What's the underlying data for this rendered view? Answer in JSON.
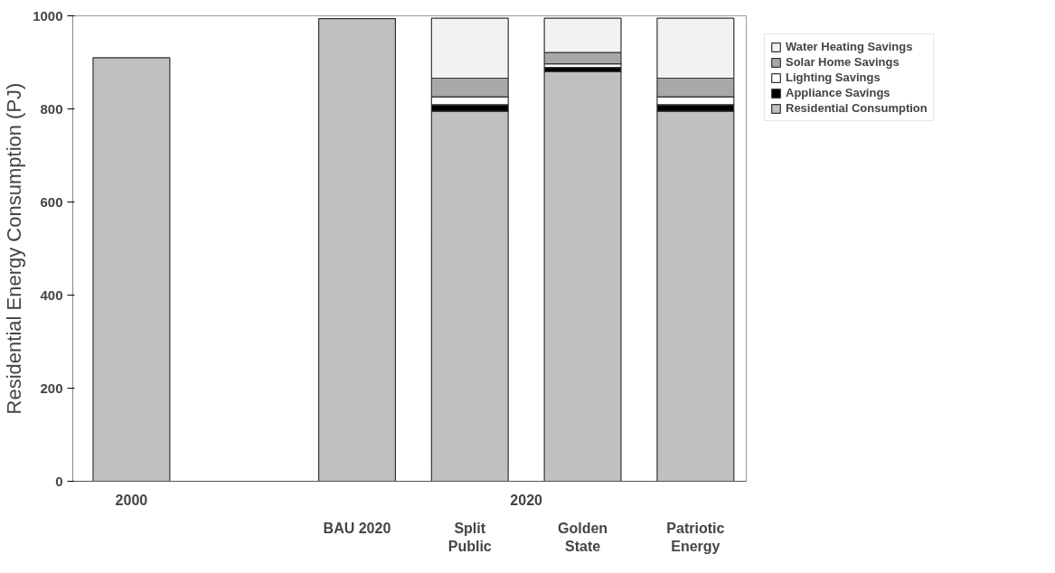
{
  "chart_data": {
    "type": "bar",
    "stacked": true,
    "ylabel": "Residential Energy Consumption (PJ)",
    "categories": [
      "2000",
      null,
      "BAU 2020",
      "Split\nPublic",
      "Golden\nState",
      "Patriotic\nEnergy"
    ],
    "series": [
      {
        "name": "Residential Consumption",
        "color": "#c0c0c0",
        "values": [
          910,
          null,
          994,
          795,
          880,
          795
        ]
      },
      {
        "name": "Appliance Savings",
        "color": "#000000",
        "values": [
          null,
          null,
          null,
          14,
          9,
          14
        ]
      },
      {
        "name": "Lighting Savings",
        "color": "#ffffff",
        "values": [
          null,
          null,
          null,
          17,
          8,
          17
        ]
      },
      {
        "name": "Solar Home Savings",
        "color": "#a8a8a8",
        "values": [
          null,
          null,
          null,
          40,
          24,
          40
        ]
      },
      {
        "name": "Water Heating Savings",
        "color": "#f2f2f2",
        "values": [
          null,
          null,
          null,
          129,
          74,
          129
        ]
      }
    ],
    "annotations": [
      "2020"
    ],
    "ylim": [
      0,
      1000
    ],
    "yticks": [
      0,
      200,
      400,
      600,
      800,
      1000
    ],
    "grid": false,
    "legend": "right"
  }
}
